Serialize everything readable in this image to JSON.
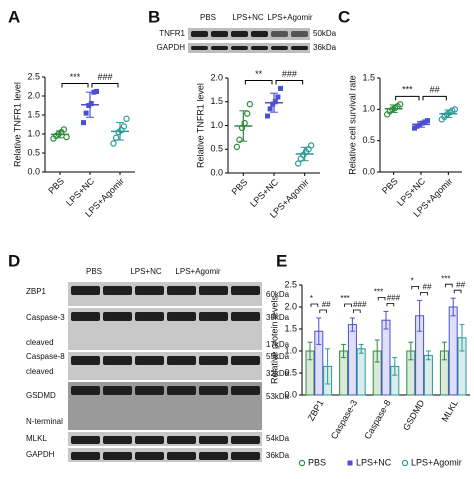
{
  "panel_labels": [
    "A",
    "B",
    "C",
    "D",
    "E"
  ],
  "blot_b": {
    "lanes": [
      "PBS",
      "LPS+NC",
      "LPS+Agomir"
    ],
    "bands": [
      "TNFR1",
      "GAPDH"
    ],
    "sizes": [
      "50kDa",
      "36kDa"
    ]
  },
  "blot_d": {
    "lanes": [
      "PBS",
      "LPS+NC",
      "LPS+Agomir"
    ],
    "bands": [
      "ZBP1",
      "Caspase-3",
      "cleaved",
      "Caspase-8",
      "cleaved",
      "GSDMD",
      "N-terminal",
      "MLKL",
      "GAPDH"
    ],
    "sizes": [
      "60kDa",
      "35kDa",
      "17kDa",
      "55kDa",
      "32kDa",
      "53kDa",
      "54kDa",
      "36kDa"
    ]
  },
  "chart_data": [
    {
      "type": "dot",
      "ylabel": "Relative TNFR1 level",
      "categories": [
        "PBS",
        "LPS+NC",
        "LPS+Agomir"
      ],
      "colors": [
        "#2e8b3e",
        "#4b4fd1",
        "#2a9a96"
      ],
      "values": [
        0.99,
        1.77,
        1.07
      ],
      "errors": [
        0.09,
        0.33,
        0.23
      ],
      "points": [
        [
          0.88,
          0.95,
          1.0,
          1.05,
          1.12,
          0.92
        ],
        [
          1.3,
          1.55,
          1.75,
          1.8,
          2.1,
          2.12
        ],
        [
          0.75,
          0.9,
          1.05,
          1.1,
          1.2,
          1.4
        ]
      ],
      "comparisons": [
        "***",
        "###"
      ],
      "ylim": [
        0,
        2.5
      ],
      "yticks": [
        {
          "value": 0,
          "label": "0.0"
        },
        0.5,
        {
          "value": 1,
          "label": "1.0"
        },
        1.5,
        {
          "value": 2,
          "label": "2.0"
        },
        2.5
      ]
    },
    {
      "type": "dot",
      "ylabel": "Relative TNFR1 level",
      "categories": [
        "PBS",
        "LPS+NC",
        "LPS+Agomir"
      ],
      "colors": [
        "#2e8b3e",
        "#4b4fd1",
        "#2a9a96"
      ],
      "values": [
        0.99,
        1.48,
        0.4
      ],
      "errors": [
        0.32,
        0.2,
        0.14
      ],
      "points": [
        [
          0.55,
          0.7,
          0.95,
          1.05,
          1.25,
          1.45
        ],
        [
          1.2,
          1.35,
          1.45,
          1.5,
          1.6,
          1.78
        ],
        [
          0.2,
          0.3,
          0.38,
          0.45,
          0.5,
          0.58
        ]
      ],
      "comparisons": [
        "**",
        "###"
      ],
      "ylim": [
        0,
        2
      ],
      "yticks": [
        {
          "value": 0,
          "label": "0.0"
        },
        0.5,
        {
          "value": 1,
          "label": "1.0"
        },
        1.5,
        {
          "value": 2,
          "label": "2.0"
        }
      ]
    },
    {
      "type": "dot",
      "ylabel": "Relative cell survival rate",
      "categories": [
        "PBS",
        "LPS+NC",
        "LPS+Agomir"
      ],
      "colors": [
        "#2e8b3e",
        "#4b4fd1",
        "#2a9a96"
      ],
      "values": [
        1.01,
        0.76,
        0.93
      ],
      "errors": [
        0.06,
        0.045,
        0.06
      ],
      "points": [
        [
          0.92,
          0.97,
          1.0,
          1.02,
          1.05,
          1.08
        ],
        [
          0.7,
          0.73,
          0.75,
          0.78,
          0.8,
          0.82
        ],
        [
          0.84,
          0.88,
          0.92,
          0.95,
          0.98,
          1.0
        ]
      ],
      "comparisons": [
        "***",
        "##"
      ],
      "ylim": [
        0,
        1.5
      ],
      "yticks": [
        {
          "value": 0,
          "label": "0.0"
        },
        0.5,
        {
          "value": 1,
          "label": "1.0"
        },
        1.5
      ]
    },
    {
      "type": "bar",
      "ylabel": "Relative protein levels",
      "categories": [
        "ZBP1",
        "Caspase-3",
        "Caspase-8",
        "GSDMD",
        "MLKL"
      ],
      "series": [
        {
          "name": "PBS",
          "color": "#2e8b3e",
          "values": [
            1,
            1,
            1,
            1,
            1
          ],
          "errors": [
            0.2,
            0.15,
            0.25,
            0.2,
            0.2
          ]
        },
        {
          "name": "LPS+NC",
          "color": "#4b4fd1",
          "values": [
            1.45,
            1.6,
            1.7,
            1.8,
            2.0
          ],
          "errors": [
            0.3,
            0.15,
            0.2,
            0.35,
            0.2
          ]
        },
        {
          "name": "LPS+Agomir",
          "color": "#2a9a96",
          "values": [
            0.65,
            1.05,
            0.65,
            0.9,
            1.3
          ],
          "errors": [
            0.4,
            0.1,
            0.2,
            0.1,
            0.3
          ]
        }
      ],
      "comparisons": [
        [
          "*",
          "##"
        ],
        [
          "***",
          "###"
        ],
        [
          "***",
          "###"
        ],
        [
          "*",
          "##"
        ],
        [
          "***",
          "##"
        ]
      ],
      "ylim": [
        0,
        2.5
      ],
      "yticks": [
        {
          "value": 0,
          "label": "0.0"
        },
        0.5,
        {
          "value": 1,
          "label": "1.0"
        },
        1.5,
        {
          "value": 2,
          "label": "2.0"
        },
        2.5
      ]
    }
  ]
}
